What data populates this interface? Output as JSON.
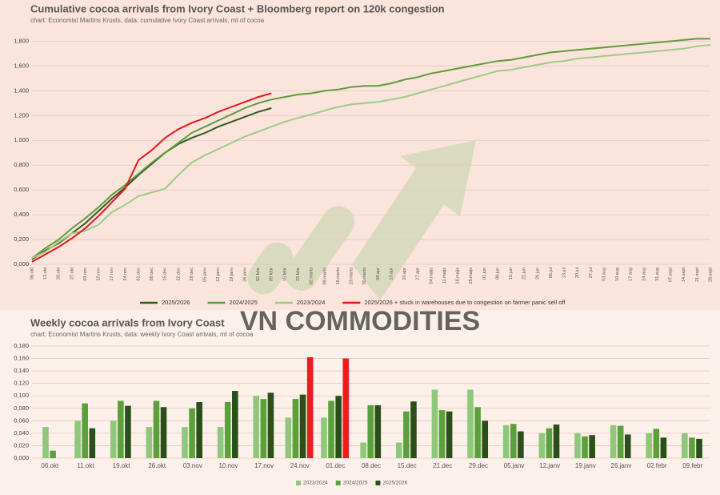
{
  "watermark": "VN COMMODITIES",
  "chart_data": [
    {
      "type": "line",
      "title": "Cumulative cocoa arrivals from Ivory Coast + Bloomberg report on 120k congestion",
      "subtitle": "chart: Economist Martins Krusts, data: cumulative Ivory Coast arrivals, mt of cocoa",
      "categories": [
        "06.okt",
        "13.okt",
        "20.okt",
        "27.okt",
        "03.nov",
        "10.nov",
        "17.nov",
        "24.nov",
        "01.dec",
        "08.dec",
        "15.dec",
        "22.dec",
        "29.dec",
        "05.janv",
        "12.janv",
        "19.janv",
        "26.janv",
        "02.febr",
        "09.febr",
        "16.febr",
        "23.febr",
        "02.marts",
        "09.marts",
        "16.marts",
        "23.marts",
        "30.marts",
        "06.apr",
        "13.apr",
        "20.apr",
        "27.apr",
        "04.maijs",
        "11.maijs",
        "18.maijs",
        "25.maijs",
        "01.jun",
        "08.jun",
        "15.jun",
        "22.jun",
        "29.jun",
        "06.jul",
        "13.jul",
        "20.jul",
        "27.jul",
        "03.aug",
        "10.aug",
        "17.aug",
        "24.aug",
        "31.aug",
        "07.sept",
        "14.sept",
        "21.sept",
        "28.sept"
      ],
      "series": [
        {
          "name": "2025/2026",
          "color": "#2e5b1f",
          "values": [
            0.04,
            0.11,
            0.17,
            0.25,
            0.33,
            0.43,
            0.53,
            0.62,
            0.72,
            0.81,
            0.9,
            0.97,
            1.02,
            1.06,
            1.11,
            1.15,
            1.19,
            1.23,
            1.26,
            null,
            null,
            null,
            null,
            null,
            null,
            null,
            null,
            null,
            null,
            null,
            null,
            null,
            null,
            null,
            null,
            null,
            null,
            null,
            null,
            null,
            null,
            null,
            null,
            null,
            null,
            null,
            null,
            null,
            null,
            null,
            null,
            null
          ]
        },
        {
          "name": "2024/2025",
          "color": "#5e9c3c",
          "values": [
            0.05,
            0.13,
            0.2,
            0.29,
            0.37,
            0.46,
            0.56,
            0.64,
            0.73,
            0.82,
            0.9,
            0.98,
            1.06,
            1.11,
            1.16,
            1.21,
            1.26,
            1.3,
            1.33,
            1.35,
            1.37,
            1.38,
            1.4,
            1.41,
            1.43,
            1.44,
            1.44,
            1.46,
            1.49,
            1.51,
            1.54,
            1.56,
            1.58,
            1.6,
            1.62,
            1.64,
            1.65,
            1.67,
            1.69,
            1.71,
            1.72,
            1.73,
            1.74,
            1.75,
            1.76,
            1.77,
            1.78,
            1.79,
            1.8,
            1.81,
            1.82,
            1.82
          ]
        },
        {
          "name": "2023/2024",
          "color": "#9ccb88",
          "values": [
            0.05,
            0.1,
            0.18,
            0.25,
            0.27,
            0.32,
            0.42,
            0.48,
            0.55,
            0.58,
            0.61,
            0.72,
            0.82,
            0.88,
            0.93,
            0.98,
            1.03,
            1.07,
            1.11,
            1.15,
            1.18,
            1.21,
            1.24,
            1.27,
            1.29,
            1.3,
            1.31,
            1.33,
            1.35,
            1.38,
            1.41,
            1.44,
            1.47,
            1.5,
            1.53,
            1.56,
            1.57,
            1.59,
            1.61,
            1.63,
            1.64,
            1.66,
            1.67,
            1.68,
            1.69,
            1.7,
            1.71,
            1.72,
            1.73,
            1.74,
            1.76,
            1.77
          ]
        },
        {
          "name": "2025/2026 + stuck in warehouses due to congestion on farmer panic sell off",
          "color": "#e8161c",
          "values": [
            0.02,
            0.08,
            0.14,
            0.21,
            0.29,
            0.39,
            0.5,
            0.61,
            0.84,
            0.92,
            1.02,
            1.09,
            1.14,
            1.18,
            1.23,
            1.27,
            1.31,
            1.35,
            1.38,
            null,
            null,
            null,
            null,
            null,
            null,
            null,
            null,
            null,
            null,
            null,
            null,
            null,
            null,
            null,
            null,
            null,
            null,
            null,
            null,
            null,
            null,
            null,
            null,
            null,
            null,
            null,
            null,
            null,
            null,
            null,
            null,
            null
          ]
        }
      ],
      "ylim": [
        0,
        1.9
      ],
      "yticks": [
        {
          "value": 0,
          "label": "0,000"
        },
        {
          "value": 0.2,
          "label": "0,200"
        },
        {
          "value": 0.4,
          "label": "0,400"
        },
        {
          "value": 0.6,
          "label": "0,600"
        },
        {
          "value": 0.8,
          "label": "0,800"
        },
        {
          "value": 1.0,
          "label": "1,000"
        },
        {
          "value": 1.2,
          "label": "1,200"
        },
        {
          "value": 1.4,
          "label": "1,400"
        },
        {
          "value": 1.6,
          "label": "1,600"
        },
        {
          "value": 1.8,
          "label": "1,800"
        }
      ],
      "grid": true,
      "legend": "bottom"
    },
    {
      "type": "bar",
      "title": "Weekly cocoa arrivals from Ivory Coast",
      "subtitle": "chart: Economist Martins Krusts, data: weekly Ivory Coast arrivals, mt of cocoa",
      "categories": [
        "06.okt",
        "11.okt",
        "19.okt",
        "26.okt",
        "03.nov",
        "10.nov",
        "17.nov",
        "24.nov",
        "01.dec",
        "08.dec",
        "15.dec",
        "21.dec",
        "29.dec",
        "05.janv",
        "12.janv",
        "19.janv",
        "26.janv",
        "02.febr",
        "09.febr"
      ],
      "series": [
        {
          "name": "2023/2024",
          "color": "#8fc77b",
          "values": [
            0.05,
            0.06,
            0.06,
            0.05,
            0.05,
            0.05,
            0.1,
            0.065,
            0.065,
            0.025,
            0.025,
            0.11,
            0.11,
            0.053,
            0.04,
            0.04,
            0.053,
            0.04,
            0.04
          ]
        },
        {
          "name": "2024/2025",
          "color": "#5aa13b",
          "values": [
            0.012,
            0.088,
            0.092,
            0.092,
            0.08,
            0.09,
            0.095,
            0.095,
            0.092,
            0.085,
            0.075,
            0.077,
            0.082,
            0.055,
            0.048,
            0.035,
            0.052,
            0.047,
            0.033
          ]
        },
        {
          "name": "2025/2026",
          "color": "#2a4f1b",
          "values": [
            null,
            0.048,
            0.084,
            0.082,
            0.09,
            0.108,
            0.105,
            0.102,
            0.1,
            0.085,
            0.091,
            0.075,
            0.06,
            0.043,
            0.054,
            0.037,
            0.038,
            0.033,
            0.031
          ]
        },
        {
          "color": "#ee1c1c",
          "values": [
            null,
            null,
            null,
            null,
            null,
            null,
            null,
            0.162,
            0.16,
            null,
            null,
            null,
            null,
            null,
            null,
            null,
            null,
            null,
            null
          ]
        }
      ],
      "ylim": [
        0,
        0.18
      ],
      "yticks": [
        {
          "value": 0,
          "label": "0,000"
        },
        {
          "value": 0.02,
          "label": "0,020"
        },
        {
          "value": 0.04,
          "label": "0,040"
        },
        {
          "value": 0.06,
          "label": "0,060"
        },
        {
          "value": 0.08,
          "label": "0,080"
        },
        {
          "value": 0.1,
          "label": "0,100"
        },
        {
          "value": 0.12,
          "label": "0,120"
        },
        {
          "value": 0.14,
          "label": "0,140"
        },
        {
          "value": 0.16,
          "label": "0,160"
        },
        {
          "value": 0.18,
          "label": "0,180"
        }
      ],
      "grid": true,
      "legend": "bottom"
    }
  ]
}
